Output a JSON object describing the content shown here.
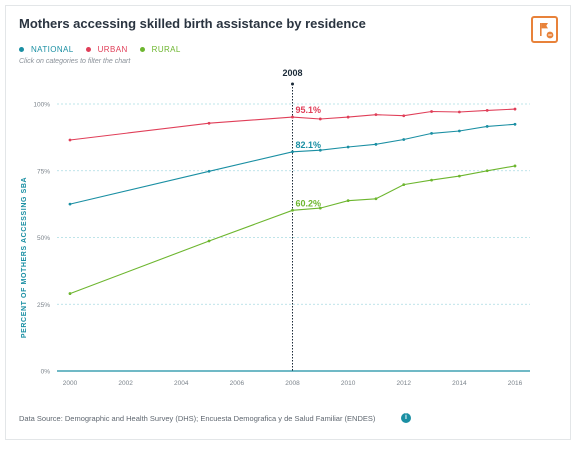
{
  "title": "Mothers accessing skilled birth assistance by residence",
  "legend_hint": "Click on categories to filter the chart",
  "source_text": "Data Source: Demographic and Health Survey (DHS); Encuesta Demografica y de Salud Familiar (ENDES)",
  "info_glyph": "i",
  "colors": {
    "national": "#1a8fa3",
    "urban": "#e03e58",
    "rural": "#6db62f",
    "accent": "#e8823a"
  },
  "chart_data": {
    "type": "line",
    "ylabel": "PERCENT OF MOTHERS ACCESSING SBA",
    "xlabel": "",
    "ylim": [
      0,
      100
    ],
    "xlim": [
      2000,
      2016
    ],
    "x_ticks": [
      "2000",
      "2002",
      "2004",
      "2006",
      "2008",
      "2010",
      "2012",
      "2014",
      "2016"
    ],
    "y_ticks": [
      "0%",
      "25%",
      "50%",
      "75%",
      "100%"
    ],
    "grid": true,
    "legend_position": "top-left",
    "highlight": {
      "year": "2008",
      "labels": [
        {
          "series": "URBAN",
          "text": "95.1%"
        },
        {
          "series": "NATIONAL",
          "text": "82.1%"
        },
        {
          "series": "RURAL",
          "text": "60.2%"
        }
      ]
    },
    "series": [
      {
        "name": "NATIONAL",
        "color": "#1a8fa3",
        "points": [
          [
            2000,
            62.5
          ],
          [
            2005,
            74.8
          ],
          [
            2008,
            82.1
          ],
          [
            2009,
            82.7
          ],
          [
            2010,
            83.9
          ],
          [
            2011,
            84.9
          ],
          [
            2012,
            86.7
          ],
          [
            2013,
            89.0
          ],
          [
            2014,
            89.9
          ],
          [
            2015,
            91.6
          ],
          [
            2016,
            92.4
          ]
        ]
      },
      {
        "name": "URBAN",
        "color": "#e03e58",
        "points": [
          [
            2000,
            86.5
          ],
          [
            2005,
            92.8
          ],
          [
            2008,
            95.1
          ],
          [
            2009,
            94.4
          ],
          [
            2010,
            95.1
          ],
          [
            2011,
            96.0
          ],
          [
            2012,
            95.6
          ],
          [
            2013,
            97.2
          ],
          [
            2014,
            97.0
          ],
          [
            2015,
            97.6
          ],
          [
            2016,
            98.1
          ]
        ]
      },
      {
        "name": "RURAL",
        "color": "#6db62f",
        "points": [
          [
            2000,
            29.0
          ],
          [
            2005,
            48.7
          ],
          [
            2008,
            60.2
          ],
          [
            2009,
            61.0
          ],
          [
            2010,
            63.8
          ],
          [
            2011,
            64.5
          ],
          [
            2012,
            69.8
          ],
          [
            2013,
            71.5
          ],
          [
            2014,
            73.0
          ],
          [
            2015,
            75.0
          ],
          [
            2016,
            76.8
          ]
        ]
      }
    ]
  }
}
